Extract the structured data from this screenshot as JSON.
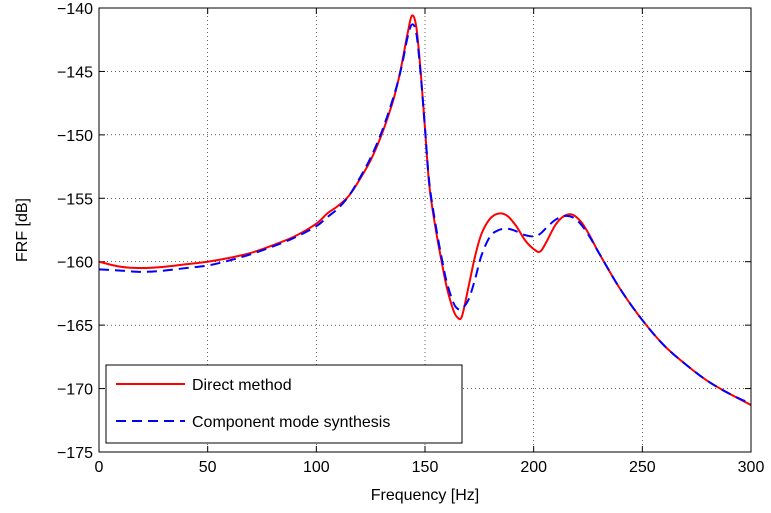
{
  "chart_data": {
    "type": "line",
    "xlabel": "Frequency [Hz]",
    "ylabel": "FRF [dB]",
    "xlim": [
      0,
      300
    ],
    "ylim": [
      -175,
      -140
    ],
    "xticks": [
      0,
      50,
      100,
      150,
      200,
      250,
      300
    ],
    "yticks": [
      -175,
      -170,
      -165,
      -160,
      -155,
      -150,
      -145,
      -140
    ],
    "xtick_labels": [
      "0",
      "50",
      "100",
      "150",
      "200",
      "250",
      "300"
    ],
    "ytick_labels": [
      "−175",
      "−170",
      "−165",
      "−160",
      "−155",
      "−150",
      "−145",
      "−140"
    ],
    "grid": true,
    "legend_position": "bottom-left",
    "series": [
      {
        "name": "Direct method",
        "color": "#ff0000",
        "style": "solid",
        "x": [
          0,
          10,
          20,
          30,
          40,
          50,
          60,
          70,
          80,
          90,
          100,
          105,
          110,
          115,
          120,
          125,
          130,
          135,
          138,
          140,
          142,
          144,
          146,
          148,
          150,
          152,
          155,
          158,
          160,
          163,
          165,
          167,
          170,
          173,
          176,
          180,
          184,
          188,
          192,
          196,
          200,
          203,
          206,
          210,
          214,
          218,
          222,
          226,
          230,
          240,
          250,
          260,
          270,
          280,
          290,
          300
        ],
        "y": [
          -160.0,
          -160.4,
          -160.5,
          -160.4,
          -160.2,
          -160.0,
          -159.7,
          -159.3,
          -158.7,
          -158.0,
          -157.0,
          -156.2,
          -155.6,
          -154.8,
          -153.5,
          -152.0,
          -150.0,
          -147.5,
          -145.5,
          -143.8,
          -142.0,
          -140.6,
          -141.5,
          -145.0,
          -149.5,
          -154.0,
          -157.5,
          -160.3,
          -162.0,
          -163.8,
          -164.4,
          -164.3,
          -162.0,
          -159.6,
          -157.8,
          -156.6,
          -156.2,
          -156.4,
          -157.2,
          -158.3,
          -159.0,
          -159.2,
          -158.4,
          -157.1,
          -156.4,
          -156.3,
          -156.9,
          -158.0,
          -159.3,
          -162.2,
          -164.6,
          -166.6,
          -168.1,
          -169.4,
          -170.4,
          -171.3
        ]
      },
      {
        "name": "Component mode synthesis",
        "color": "#0000ff",
        "style": "dashed",
        "x": [
          0,
          10,
          20,
          30,
          40,
          50,
          60,
          70,
          80,
          90,
          100,
          105,
          110,
          115,
          120,
          125,
          130,
          135,
          138,
          140,
          142,
          144,
          146,
          148,
          150,
          152,
          155,
          158,
          160,
          163,
          165,
          167,
          170,
          173,
          176,
          180,
          184,
          188,
          192,
          196,
          200,
          203,
          206,
          210,
          214,
          218,
          222,
          226,
          230,
          240,
          250,
          260,
          270,
          280,
          290,
          300
        ],
        "y": [
          -160.6,
          -160.7,
          -160.8,
          -160.7,
          -160.5,
          -160.3,
          -159.9,
          -159.4,
          -158.8,
          -158.1,
          -157.2,
          -156.5,
          -155.8,
          -154.8,
          -153.4,
          -151.8,
          -149.8,
          -147.3,
          -145.5,
          -144.0,
          -142.3,
          -141.3,
          -142.0,
          -145.2,
          -149.5,
          -153.8,
          -157.2,
          -160.0,
          -161.6,
          -163.2,
          -163.7,
          -163.7,
          -163.0,
          -161.4,
          -159.5,
          -158.0,
          -157.5,
          -157.4,
          -157.6,
          -157.9,
          -158.0,
          -157.8,
          -157.3,
          -156.7,
          -156.4,
          -156.5,
          -157.1,
          -158.1,
          -159.3,
          -162.2,
          -164.6,
          -166.6,
          -168.1,
          -169.4,
          -170.4,
          -171.2
        ]
      }
    ]
  }
}
